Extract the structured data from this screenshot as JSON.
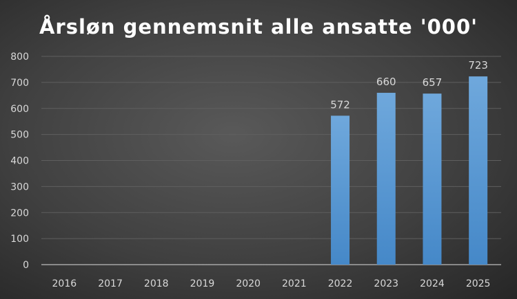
{
  "chart_data": {
    "type": "bar",
    "title": "Årsløn gennemsnit alle ansatte '000'",
    "xlabel": "",
    "ylabel": "",
    "categories": [
      "2016",
      "2017",
      "2018",
      "2019",
      "2020",
      "2021",
      "2022",
      "2023",
      "2024",
      "2025"
    ],
    "values": [
      null,
      null,
      null,
      null,
      null,
      null,
      572,
      660,
      657,
      723
    ],
    "data_labels": [
      "",
      "",
      "",
      "",
      "",
      "",
      "572",
      "660",
      "657",
      "723"
    ],
    "ylim": [
      0,
      800
    ],
    "yticks": [
      0,
      100,
      200,
      300,
      400,
      500,
      600,
      700,
      800
    ],
    "grid": true,
    "legend": "none",
    "colors": {
      "bar_top": "#6fa8dc",
      "bar_bottom": "#4588c8",
      "text": "#d9d9d9",
      "title": "#ffffff",
      "grid": "#5f5f5f",
      "axis": "#a6a6a6"
    }
  }
}
